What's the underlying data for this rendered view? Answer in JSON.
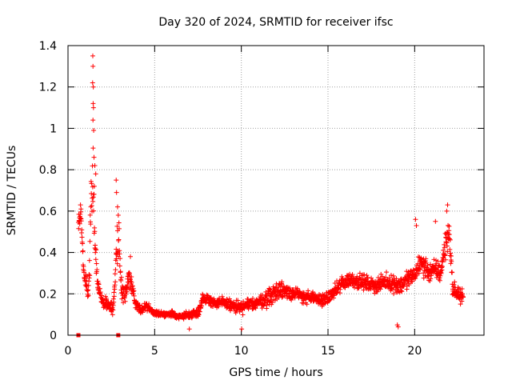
{
  "chart_data": {
    "type": "scatter",
    "title": "Day 320 of 2024, SRMTID for receiver ifsc",
    "xlabel": "GPS time / hours",
    "ylabel": "SRMTID / TECUs",
    "xlim": [
      0,
      24
    ],
    "ylim": [
      0,
      1.4
    ],
    "xticks": [
      0,
      5,
      10,
      15,
      20
    ],
    "xtick_labels": [
      "0",
      "5",
      "10",
      "15",
      "20"
    ],
    "yticks": [
      0,
      0.2,
      0.4,
      0.6,
      0.8,
      1,
      1.2,
      1.4
    ],
    "ytick_labels": [
      "0",
      "0.2",
      "0.4",
      "0.6",
      "0.8",
      "1",
      "1.2",
      "1.4"
    ],
    "grid": true,
    "marker": "plus",
    "color": "#ff0000",
    "series": [
      {
        "name": "SRMTID",
        "profile_x": [
          0.6,
          0.75,
          0.9,
          1.05,
          1.2,
          1.35,
          1.45,
          1.55,
          1.7,
          1.85,
          2.0,
          2.2,
          2.4,
          2.6,
          2.8,
          2.95,
          3.1,
          3.3,
          3.5,
          3.7,
          3.9,
          4.2,
          4.5,
          5.0,
          5.5,
          6.0,
          6.5,
          7.0,
          7.5,
          7.8,
          8.2,
          8.6,
          9.0,
          9.5,
          10.0,
          10.5,
          11.0,
          11.5,
          12.0,
          12.5,
          13.0,
          13.5,
          14.0,
          14.5,
          15.0,
          15.5,
          15.8,
          16.3,
          16.8,
          17.3,
          17.8,
          18.3,
          18.8,
          19.2,
          19.6,
          20.0,
          20.3,
          20.6,
          20.9,
          21.2,
          21.5,
          21.8,
          22.0,
          22.2,
          22.5,
          22.8
        ],
        "profile_y": [
          0.55,
          0.58,
          0.3,
          0.25,
          0.22,
          0.75,
          0.7,
          0.45,
          0.25,
          0.2,
          0.17,
          0.15,
          0.14,
          0.12,
          0.42,
          0.45,
          0.22,
          0.2,
          0.28,
          0.22,
          0.15,
          0.12,
          0.14,
          0.11,
          0.1,
          0.1,
          0.09,
          0.1,
          0.11,
          0.18,
          0.17,
          0.15,
          0.16,
          0.14,
          0.13,
          0.15,
          0.16,
          0.18,
          0.21,
          0.22,
          0.2,
          0.19,
          0.18,
          0.17,
          0.18,
          0.22,
          0.25,
          0.27,
          0.26,
          0.25,
          0.24,
          0.26,
          0.25,
          0.24,
          0.27,
          0.29,
          0.35,
          0.33,
          0.3,
          0.32,
          0.3,
          0.45,
          0.5,
          0.22,
          0.2,
          0.18
        ],
        "profile_spread": [
          0.05,
          0.05,
          0.06,
          0.06,
          0.1,
          0.25,
          0.25,
          0.1,
          0.06,
          0.05,
          0.04,
          0.04,
          0.04,
          0.05,
          0.14,
          0.14,
          0.08,
          0.06,
          0.06,
          0.06,
          0.04,
          0.04,
          0.03,
          0.02,
          0.02,
          0.025,
          0.02,
          0.025,
          0.03,
          0.04,
          0.04,
          0.03,
          0.04,
          0.04,
          0.05,
          0.04,
          0.04,
          0.06,
          0.07,
          0.06,
          0.05,
          0.05,
          0.04,
          0.04,
          0.04,
          0.05,
          0.06,
          0.05,
          0.05,
          0.05,
          0.05,
          0.05,
          0.06,
          0.07,
          0.06,
          0.06,
          0.07,
          0.08,
          0.07,
          0.07,
          0.07,
          0.1,
          0.1,
          0.06,
          0.05,
          0.05
        ],
        "peaks": [
          {
            "x": 1.43,
            "y": 1.35
          },
          {
            "x": 1.44,
            "y": 1.3
          },
          {
            "x": 1.42,
            "y": 1.22
          },
          {
            "x": 1.46,
            "y": 1.2
          },
          {
            "x": 1.45,
            "y": 1.12
          },
          {
            "x": 1.47,
            "y": 1.1
          },
          {
            "x": 1.44,
            "y": 1.04
          },
          {
            "x": 1.48,
            "y": 0.99
          },
          {
            "x": 1.5,
            "y": 0.86
          },
          {
            "x": 1.55,
            "y": 0.82
          },
          {
            "x": 1.6,
            "y": 0.78
          },
          {
            "x": 1.52,
            "y": 0.72
          },
          {
            "x": 2.78,
            "y": 0.75
          },
          {
            "x": 2.8,
            "y": 0.69
          },
          {
            "x": 2.86,
            "y": 0.62
          },
          {
            "x": 2.9,
            "y": 0.58
          },
          {
            "x": 0.72,
            "y": 0.63
          },
          {
            "x": 0.75,
            "y": 0.61
          },
          {
            "x": 21.9,
            "y": 0.63
          },
          {
            "x": 21.85,
            "y": 0.6
          },
          {
            "x": 20.05,
            "y": 0.56
          },
          {
            "x": 20.1,
            "y": 0.53
          },
          {
            "x": 21.2,
            "y": 0.55
          },
          {
            "x": 3.6,
            "y": 0.38
          },
          {
            "x": 19.0,
            "y": 0.05
          },
          {
            "x": 19.05,
            "y": 0.04
          },
          {
            "x": 10.02,
            "y": 0.03
          },
          {
            "x": 7.0,
            "y": 0.03
          }
        ],
        "zero_markers": [
          {
            "x": 0.6,
            "y": 0.0
          },
          {
            "x": 2.9,
            "y": 0.0
          }
        ]
      }
    ]
  }
}
